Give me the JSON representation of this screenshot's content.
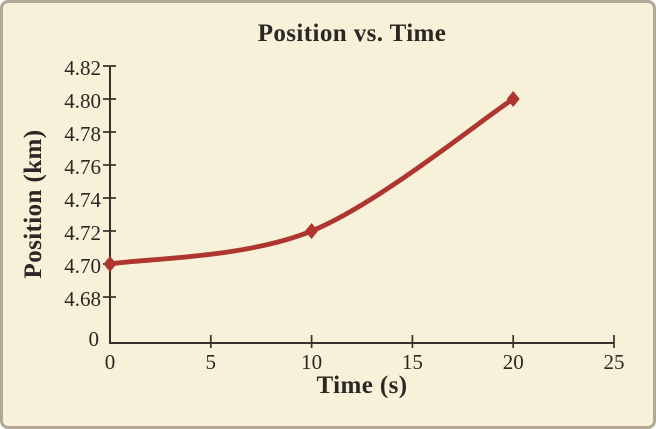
{
  "frame": {
    "background_color": "#f7f1d9",
    "border_color": "#b3a896"
  },
  "chart_data": {
    "type": "line",
    "title": "Position vs. Time",
    "xlabel": "Time (s)",
    "ylabel": "Position (km)",
    "x": [
      0,
      10,
      20
    ],
    "y": [
      4.7,
      4.72,
      4.8
    ],
    "marker": "diamond",
    "line_color": "#ae3530",
    "axis_color": "#36312b",
    "text_color": "#2b2723",
    "xlim": [
      0,
      25
    ],
    "ylim": [
      4.68,
      4.82
    ],
    "xticks": {
      "values": [
        0,
        5,
        10,
        15,
        20,
        25
      ],
      "labels": [
        "0",
        "5",
        "10",
        "15",
        "20",
        "25"
      ]
    },
    "yticks": {
      "values": [
        4.68,
        4.7,
        4.72,
        4.74,
        4.76,
        4.78,
        4.8,
        4.82
      ],
      "labels": [
        "4.68",
        "4.70",
        "4.72",
        "4.74",
        "4.76",
        "4.78",
        "4.80",
        "4.82"
      ]
    },
    "origin_label": "0",
    "axis_break_at_origin": true,
    "grid": false,
    "legend": null
  }
}
